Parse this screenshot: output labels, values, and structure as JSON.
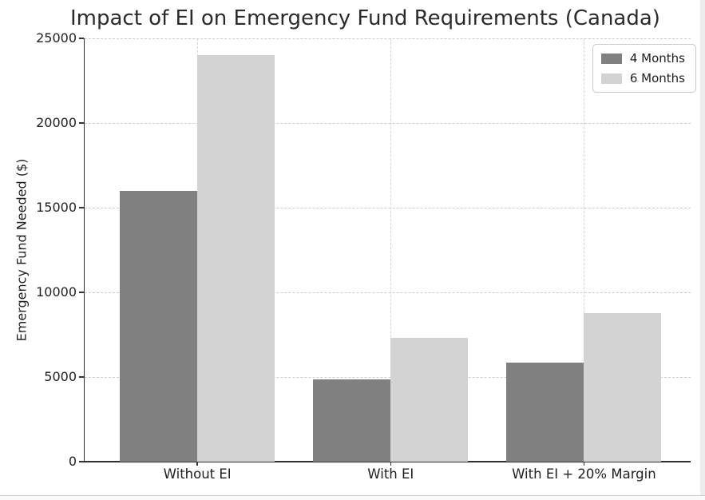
{
  "chart_data": {
    "type": "bar",
    "title": "Impact of EI on Emergency Fund Requirements (Canada)",
    "ylabel": "Emergency Fund Needed ($)",
    "xlabel": "",
    "categories": [
      "Without EI",
      "With EI",
      "With EI + 20% Margin"
    ],
    "series": [
      {
        "name": "4 Months",
        "color": "#808080",
        "values": [
          16000,
          4880,
          5856
        ]
      },
      {
        "name": "6 Months",
        "color": "#d3d3d3",
        "values": [
          24000,
          7320,
          8784
        ]
      }
    ],
    "ylim": [
      0,
      25000
    ],
    "yticks": [
      0,
      5000,
      10000,
      15000,
      20000,
      25000
    ],
    "grid": true,
    "grid_style": "dashed",
    "legend_position": "upper right",
    "legend_entries": [
      "4 Months",
      "6 Months"
    ]
  },
  "colors": {
    "background": "#ffffff",
    "bar_dark": "#808080",
    "bar_light": "#d3d3d3",
    "gridline": "#cdcdcd",
    "spine": "#333333",
    "text": "#1f1f1f"
  }
}
